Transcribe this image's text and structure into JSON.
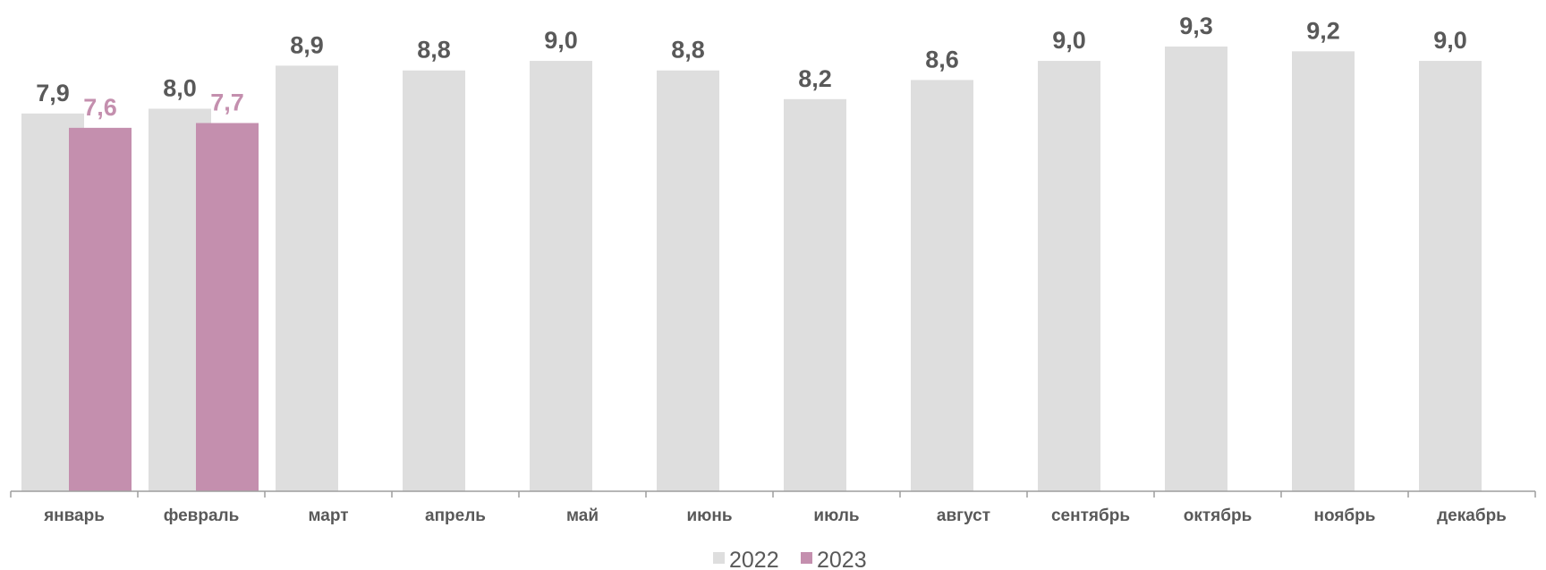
{
  "chart_data": {
    "type": "bar",
    "title": "",
    "xlabel": "",
    "ylabel": "",
    "ylim": [
      0,
      9.3
    ],
    "grid": false,
    "legend_position": "bottom",
    "categories": [
      "январь",
      "февраль",
      "март",
      "апрель",
      "май",
      "июнь",
      "июль",
      "август",
      "сентябрь",
      "октябрь",
      "ноябрь",
      "декабрь"
    ],
    "series": [
      {
        "name": "2022",
        "color": "#dedede",
        "label_color": "#595959",
        "values": [
          7.9,
          8.0,
          8.9,
          8.8,
          9.0,
          8.8,
          8.2,
          8.6,
          9.0,
          9.3,
          9.2,
          9.0
        ],
        "labels": [
          "7,9",
          "8,0",
          "8,9",
          "8,8",
          "9,0",
          "8,8",
          "8,2",
          "8,6",
          "9,0",
          "9,3",
          "9,2",
          "9,0"
        ]
      },
      {
        "name": "2023",
        "color": "#c48fae",
        "label_color": "#c48fae",
        "values": [
          7.6,
          7.7,
          null,
          null,
          null,
          null,
          null,
          null,
          null,
          null,
          null,
          null
        ],
        "labels": [
          "7,6",
          "7,7",
          "",
          "",
          "",
          "",
          "",
          "",
          "",
          "",
          "",
          ""
        ]
      }
    ]
  }
}
